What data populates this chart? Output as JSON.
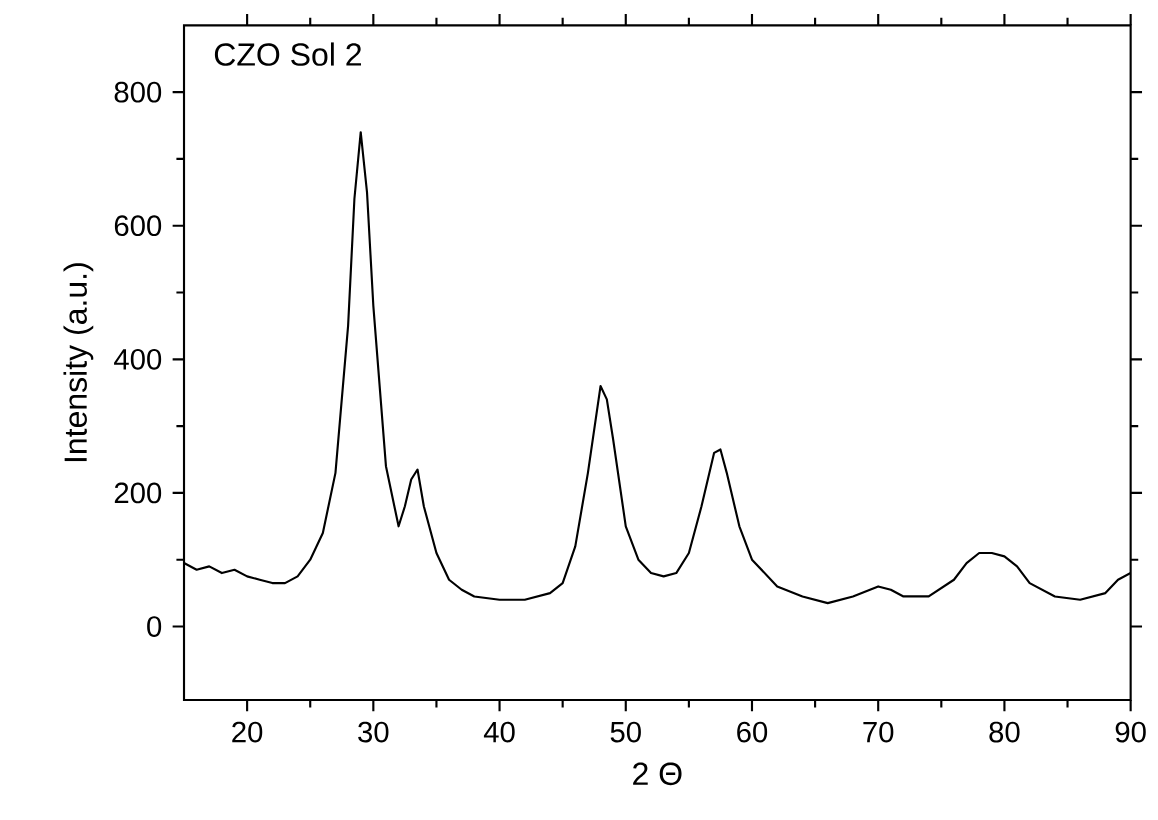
{
  "chart_data": {
    "type": "line",
    "xlabel": "2 Θ",
    "ylabel": "Intensity (a.u.)",
    "annotations": [
      "CZO Sol 2"
    ],
    "x": [
      15,
      16,
      17,
      18,
      19,
      20,
      21,
      22,
      23,
      24,
      25,
      26,
      27,
      28,
      28.5,
      29,
      29.5,
      30,
      31,
      32,
      32.5,
      33,
      33.5,
      34,
      35,
      36,
      37,
      38,
      40,
      42,
      44,
      45,
      46,
      47,
      48,
      48.5,
      49,
      50,
      51,
      52,
      53,
      54,
      55,
      56,
      57,
      57.5,
      58,
      59,
      60,
      62,
      64,
      66,
      68,
      70,
      71,
      72,
      74,
      76,
      77,
      78,
      79,
      80,
      81,
      82,
      84,
      86,
      88,
      89,
      90
    ],
    "series": [
      {
        "color": "#000000",
        "values": [
          95,
          85,
          90,
          80,
          85,
          75,
          70,
          65,
          65,
          75,
          100,
          140,
          230,
          450,
          640,
          740,
          650,
          480,
          240,
          150,
          180,
          220,
          235,
          180,
          110,
          70,
          55,
          45,
          40,
          40,
          50,
          65,
          120,
          230,
          360,
          340,
          280,
          150,
          100,
          80,
          75,
          80,
          110,
          180,
          260,
          265,
          230,
          150,
          100,
          60,
          45,
          35,
          45,
          60,
          55,
          45,
          45,
          70,
          95,
          110,
          110,
          105,
          90,
          65,
          45,
          40,
          50,
          70,
          80
        ]
      }
    ],
    "xlim": [
      15,
      90
    ],
    "ylim": [
      -110,
      900
    ],
    "xticks": [
      20,
      30,
      40,
      50,
      60,
      70,
      80,
      90
    ],
    "yticks": [
      0,
      200,
      400,
      600,
      800
    ],
    "marker": "none",
    "line_style": "solid",
    "grid": false
  }
}
